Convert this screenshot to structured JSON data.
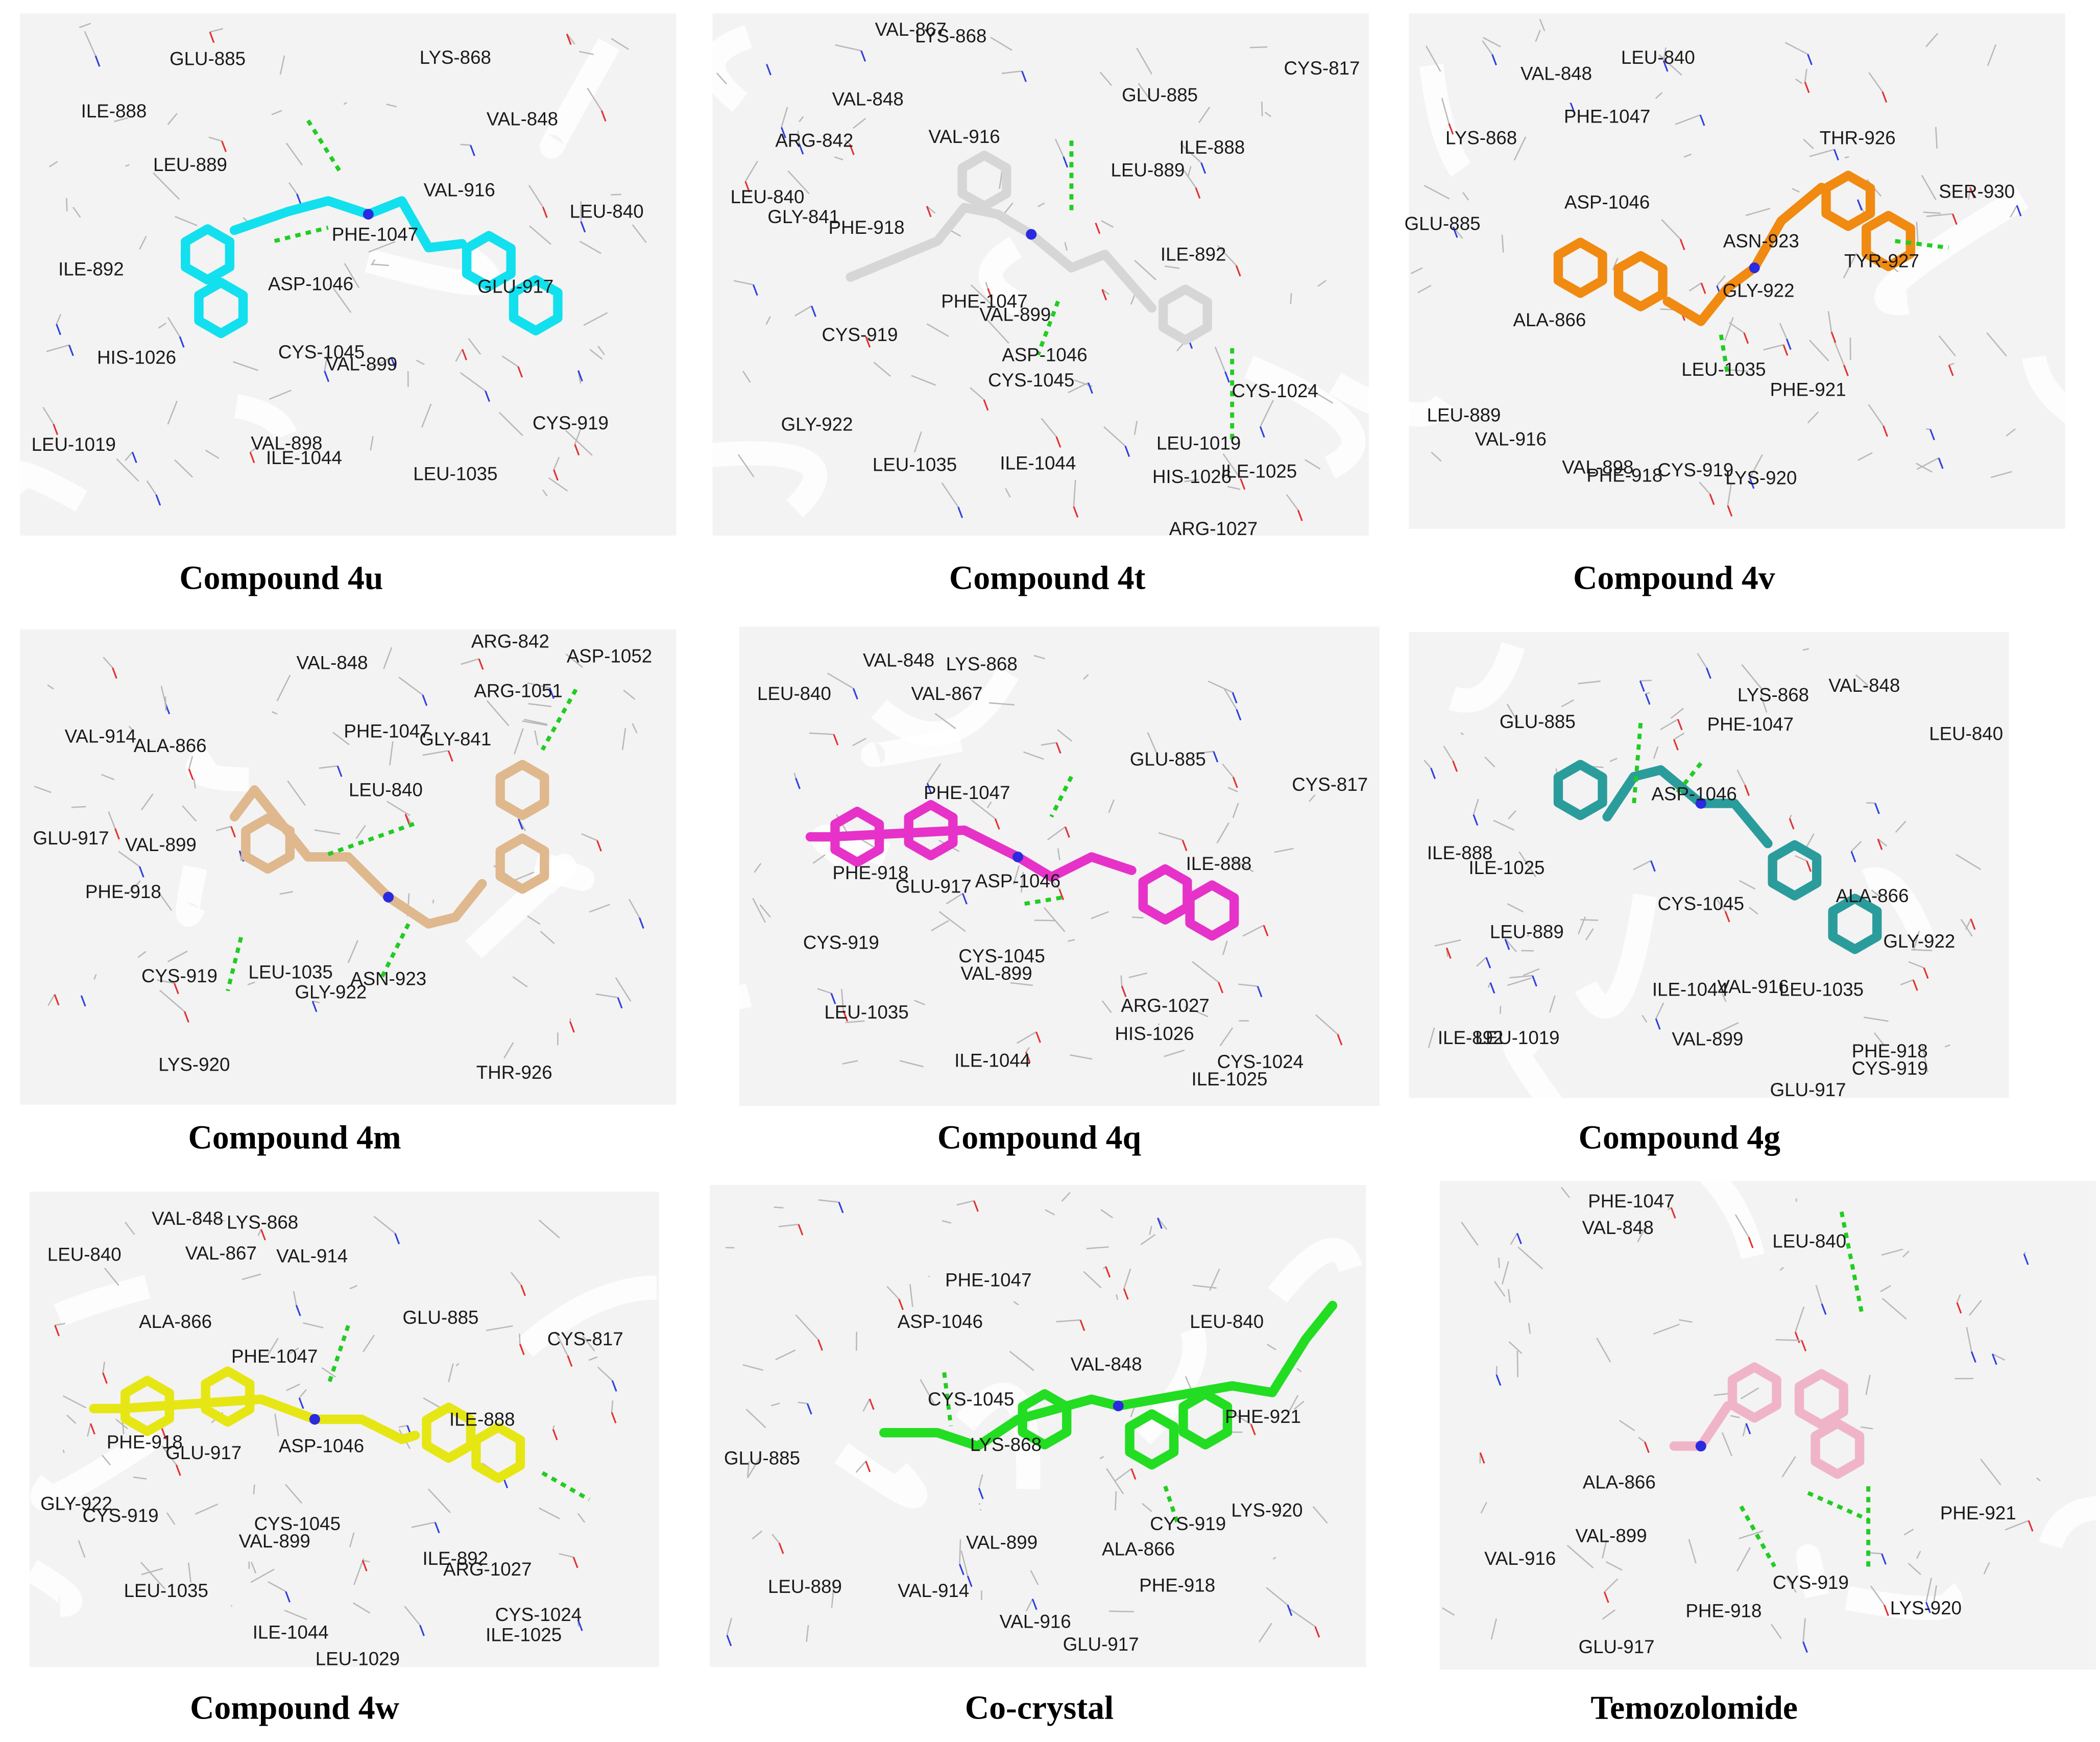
{
  "panels": [
    {
      "caption": "Compound 4u",
      "ligand_color": "#12e0ee",
      "residues": [
        "GLU-885",
        "LYS-868",
        "ILE-888",
        "VAL-848",
        "LEU-889",
        "VAL-916",
        "LEU-840",
        "PHE-1047",
        "ILE-892",
        "GLU-917",
        "ASP-1046",
        "HIS-1026",
        "CYS-1045",
        "VAL-899",
        "CYS-919",
        "LEU-1019",
        "VAL-898",
        "ILE-1044",
        "LEU-1035"
      ]
    },
    {
      "caption": "Compound 4t",
      "ligand_color": "#d6d6d6",
      "residues": [
        "VAL-867",
        "LYS-868",
        "CYS-817",
        "VAL-848",
        "GLU-885",
        "ARG-842",
        "VAL-916",
        "ILE-888",
        "LEU-889",
        "LEU-840",
        "GLY-841",
        "PHE-918",
        "ILE-892",
        "PHE-1047",
        "VAL-899",
        "CYS-919",
        "ASP-1046",
        "CYS-1045",
        "CYS-1024",
        "GLY-922",
        "LEU-1019",
        "LEU-1035",
        "ILE-1044",
        "HIS-1026",
        "ILE-1025",
        "ARG-1027"
      ]
    },
    {
      "caption": "Compound 4v",
      "ligand_color": "#f08a10",
      "residues": [
        "VAL-848",
        "LEU-840",
        "PHE-1047",
        "LYS-868",
        "THR-926",
        "SER-930",
        "ASP-1046",
        "GLU-885",
        "ASN-923",
        "TYR-927",
        "GLY-922",
        "ALA-866",
        "LEU-1035",
        "PHE-921",
        "LEU-889",
        "VAL-916",
        "VAL-898",
        "PHE-918",
        "CYS-919",
        "LYS-920"
      ]
    },
    {
      "caption": "Compound 4m",
      "ligand_color": "#dfb88e",
      "residues": [
        "ARG-842",
        "ASP-1052",
        "VAL-848",
        "ARG-1051",
        "VAL-914",
        "ALA-866",
        "PHE-1047",
        "GLY-841",
        "LEU-840",
        "GLU-917",
        "VAL-899",
        "PHE-918",
        "LEU-1035",
        "ASN-923",
        "CYS-919",
        "GLY-922",
        "LYS-920",
        "THR-926"
      ]
    },
    {
      "caption": "Compound 4q",
      "ligand_color": "#e632c8",
      "residues": [
        "VAL-848",
        "LYS-868",
        "LEU-840",
        "VAL-867",
        "CYS-817",
        "GLU-885",
        "PHE-1047",
        "PHE-918",
        "GLU-917",
        "ASP-1046",
        "ILE-888",
        "CYS-919",
        "CYS-1045",
        "VAL-899",
        "LEU-1035",
        "ARG-1027",
        "HIS-1026",
        "ILE-1044",
        "CYS-1024",
        "ILE-1025"
      ]
    },
    {
      "caption": "Compound 4g",
      "ligand_color": "#2b9c9c",
      "residues": [
        "LYS-868",
        "VAL-848",
        "GLU-885",
        "PHE-1047",
        "LEU-840",
        "ASP-1046",
        "ILE-888",
        "ILE-1025",
        "ALA-866",
        "CYS-1045",
        "LEU-889",
        "GLY-922",
        "ILE-1044",
        "VAL-916",
        "LEU-1035",
        "ILE-892",
        "LEU-1019",
        "VAL-899",
        "PHE-918",
        "CYS-919",
        "GLU-917"
      ]
    },
    {
      "caption": "Compound 4w",
      "ligand_color": "#e6e615",
      "residues": [
        "VAL-848",
        "LYS-868",
        "LEU-840",
        "VAL-867",
        "VAL-914",
        "ALA-866",
        "GLU-885",
        "CYS-817",
        "PHE-1047",
        "ILE-888",
        "PHE-918",
        "GLU-917",
        "ASP-1046",
        "GLY-922",
        "CYS-919",
        "CYS-1045",
        "VAL-899",
        "ILE-892",
        "ARG-1027",
        "LEU-1035",
        "CYS-1024",
        "ILE-1025",
        "ILE-1044",
        "LEU-1029"
      ]
    },
    {
      "caption": "Co-crystal",
      "ligand_color": "#22dd22",
      "residues": [
        "PHE-1047",
        "ASP-1046",
        "LEU-840",
        "VAL-848",
        "CYS-1045",
        "LYS-868",
        "PHE-921",
        "GLU-885",
        "CYS-919",
        "LYS-920",
        "VAL-899",
        "ALA-866",
        "LEU-889",
        "VAL-914",
        "PHE-918",
        "VAL-916",
        "GLU-917"
      ]
    },
    {
      "caption": "Temozolomide",
      "ligand_color": "#f0b4c8",
      "residues": [
        "PHE-1047",
        "VAL-848",
        "LEU-840",
        "ALA-866",
        "PHE-921",
        "VAL-899",
        "VAL-916",
        "CYS-919",
        "PHE-918",
        "LYS-920",
        "GLU-917"
      ]
    }
  ]
}
